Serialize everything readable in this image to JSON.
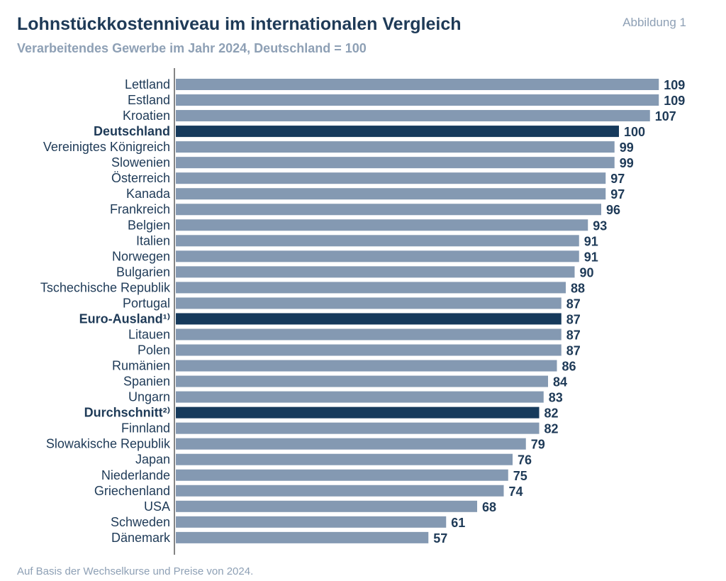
{
  "header": {
    "title": "Lohnstückkostenniveau im internationalen Vergleich",
    "subtitle": "Verarbeitendes Gewerbe im Jahr 2024, Deutschland = 100",
    "figure_label": "Abbildung 1"
  },
  "footer": {
    "source": "Auf Basis der Wechselkurse und Preise von 2024."
  },
  "colors": {
    "bar": "#8499b2",
    "highlight": "#163a5c",
    "text": "#1e3a57"
  },
  "chart_data": {
    "type": "bar",
    "orientation": "horizontal",
    "title": "Lohnstückkostenniveau im internationalen Vergleich",
    "subtitle": "Verarbeitendes Gewerbe im Jahr 2024, Deutschland = 100",
    "xlim": [
      0,
      109
    ],
    "grid": false,
    "categories": [
      "Lettland",
      "Estland",
      "Kroatien",
      "Deutschland",
      "Vereinigtes Königreich",
      "Slowenien",
      "Österreich",
      "Kanada",
      "Frankreich",
      "Belgien",
      "Italien",
      "Norwegen",
      "Bulgarien",
      "Tschechische Republik",
      "Portugal",
      "Euro-Ausland¹⁾",
      "Litauen",
      "Polen",
      "Rumänien",
      "Spanien",
      "Ungarn",
      "Durchschnitt²⁾",
      "Finnland",
      "Slowakische Republik",
      "Japan",
      "Niederlande",
      "Griechenland",
      "USA",
      "Schweden",
      "Dänemark"
    ],
    "values": [
      109,
      109,
      107,
      100,
      99,
      99,
      97,
      97,
      96,
      93,
      91,
      91,
      90,
      88,
      87,
      87,
      87,
      87,
      86,
      84,
      83,
      82,
      82,
      79,
      76,
      75,
      74,
      68,
      61,
      57
    ],
    "highlighted": [
      "Deutschland",
      "Euro-Ausland¹⁾",
      "Durchschnitt²⁾"
    ]
  }
}
